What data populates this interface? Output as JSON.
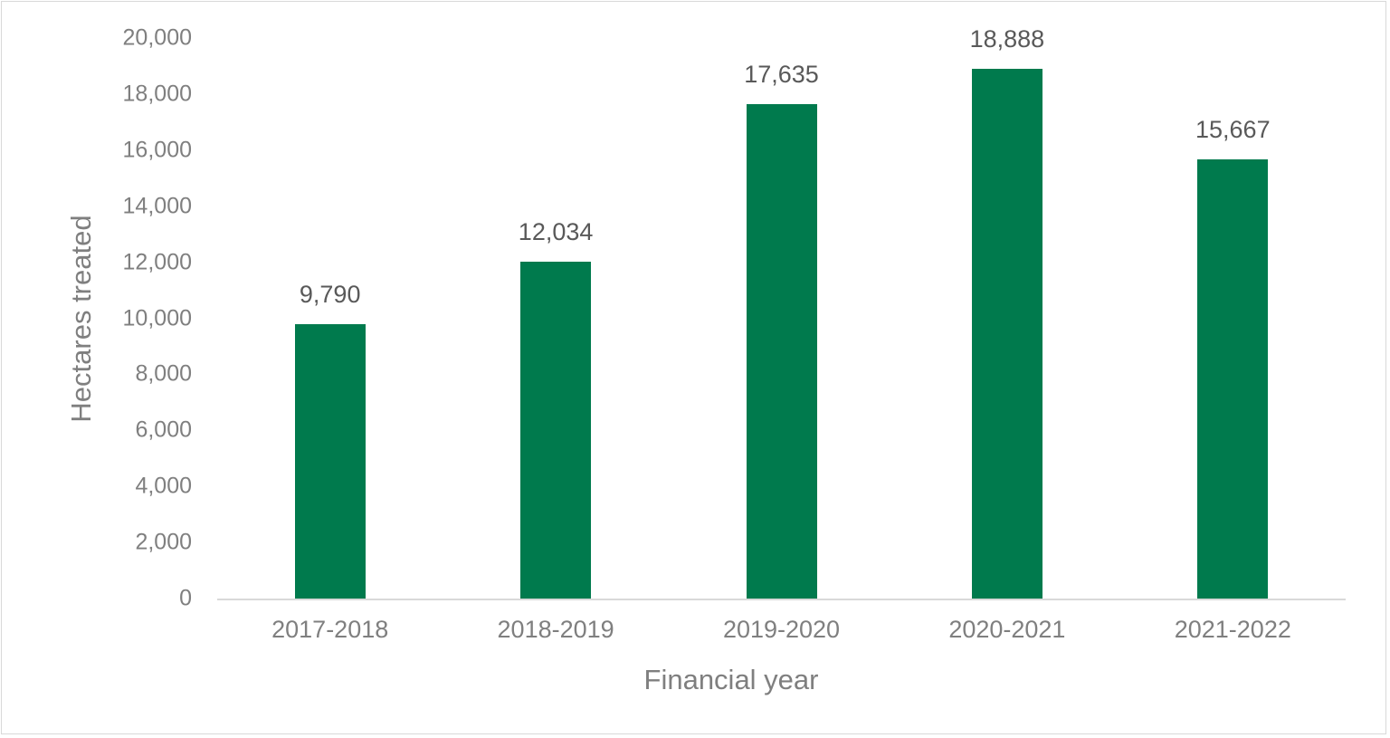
{
  "chart_data": {
    "type": "bar",
    "title": "",
    "xlabel": "Financial year",
    "ylabel": "Hectares treated",
    "categories": [
      "2017-2018",
      "2018-2019",
      "2019-2020",
      "2020-2021",
      "2021-2022"
    ],
    "values": [
      9790,
      12034,
      17635,
      18888,
      15667
    ],
    "value_labels": [
      "9,790",
      "12,034",
      "17,635",
      "18,888",
      "15,667"
    ],
    "ylim": [
      0,
      20000
    ],
    "yticks": [
      "0",
      "2,000",
      "4,000",
      "6,000",
      "8,000",
      "10,000",
      "12,000",
      "14,000",
      "16,000",
      "18,000",
      "20,000"
    ],
    "grid": false,
    "legend": null,
    "bar_color": "#007a4d"
  }
}
